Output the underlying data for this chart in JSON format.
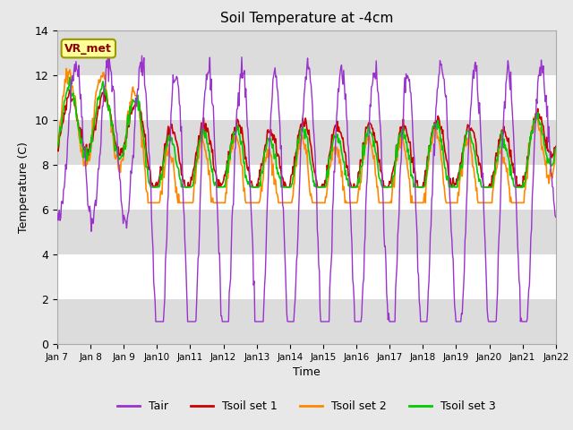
{
  "title": "Soil Temperature at -4cm",
  "xlabel": "Time",
  "ylabel": "Temperature (C)",
  "ylim": [
    0,
    14
  ],
  "colors": {
    "Tair": "#9933CC",
    "Tsoil1": "#CC0000",
    "Tsoil2": "#FF8800",
    "Tsoil3": "#00CC00"
  },
  "legend_labels": [
    "Tair",
    "Tsoil set 1",
    "Tsoil set 2",
    "Tsoil set 3"
  ],
  "x_tick_labels": [
    "Jan 7",
    "Jan 8",
    "Jan 9",
    "Jan 10",
    "Jan 11",
    "Jan 12",
    "Jan 13",
    "Jan 14",
    "Jan 15",
    "Jan 16",
    "Jan 17",
    "Jan 18",
    "Jan 19",
    "Jan 20",
    "Jan 21",
    "Jan 22"
  ],
  "annotation_text": "VR_met",
  "annotation_box_color": "#FFFF99",
  "annotation_text_color": "#8B0000",
  "plot_bg_color": "#FFFFFF",
  "fig_bg_color": "#E8E8E8",
  "band_color": "#DCDCDC",
  "n_points": 720,
  "seed": 42
}
